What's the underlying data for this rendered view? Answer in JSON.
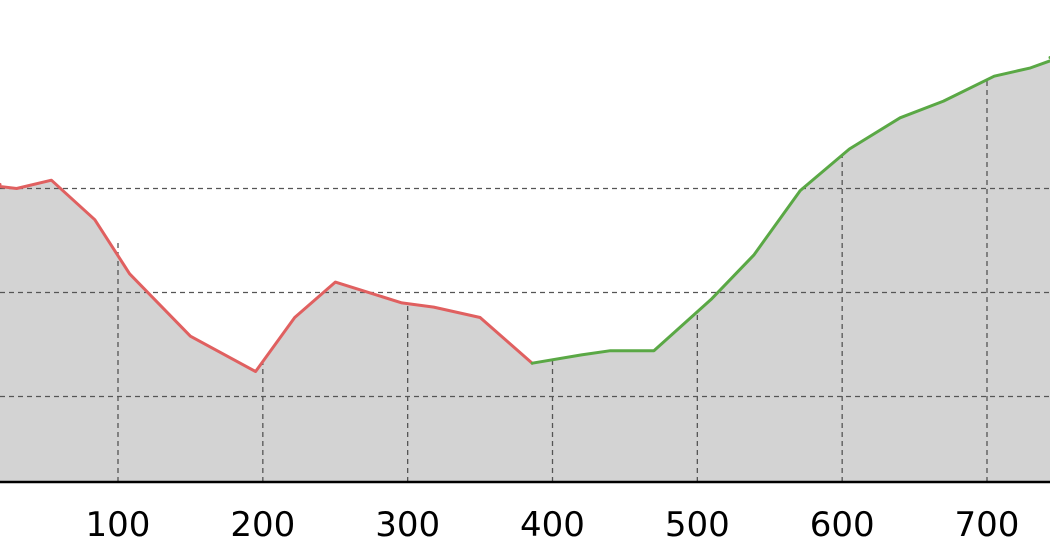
{
  "chart_data": {
    "type": "area",
    "title": "",
    "xlabel": "",
    "ylabel": "",
    "x_ticks": [
      100,
      200,
      300,
      400,
      500,
      600,
      700
    ],
    "grid": true,
    "colors": {
      "fill": "#d3d3d3",
      "descending": "#e06060",
      "ascending": "#5aa845"
    },
    "series": [
      {
        "color": "#e06060",
        "x": [
          18,
          30,
          54,
          84,
          108,
          150,
          195,
          222,
          250,
          296,
          318,
          350,
          386
        ],
        "y": [
          2.01,
          2.0,
          2.04,
          1.85,
          1.59,
          1.29,
          1.12,
          1.38,
          1.55,
          1.45,
          1.43,
          1.38,
          1.16
        ]
      },
      {
        "color": "#5aa845",
        "x": [
          386,
          420,
          440,
          470,
          510,
          539,
          571,
          605,
          640,
          670,
          705,
          730,
          750
        ],
        "y": [
          1.16,
          1.2,
          1.22,
          1.22,
          1.47,
          1.68,
          1.99,
          2.19,
          2.34,
          2.42,
          2.54,
          2.58,
          2.63
        ]
      }
    ]
  }
}
